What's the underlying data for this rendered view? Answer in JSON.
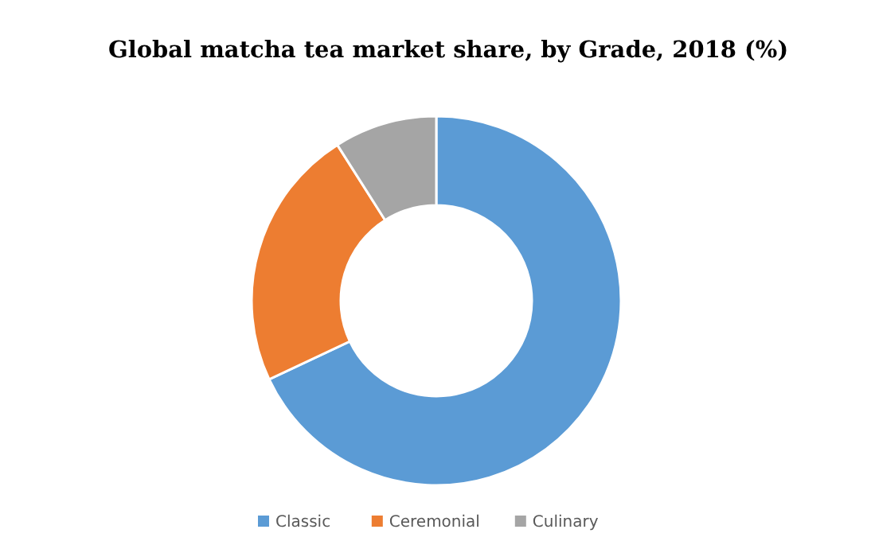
{
  "chart_data": {
    "type": "donut",
    "title": "Global matcha tea market share, by Grade, 2018 (%)",
    "categories": [
      "Classic",
      "Ceremonial",
      "Culinary"
    ],
    "values": [
      68,
      23,
      9
    ],
    "colors": [
      "#5b9bd5",
      "#ed7d31",
      "#a5a5a5"
    ],
    "legend": "bottom"
  }
}
